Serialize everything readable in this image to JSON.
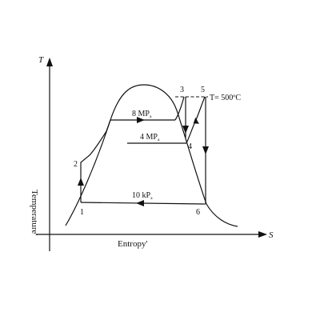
{
  "axes": {
    "y_letter": "T",
    "x_letter": "S",
    "y_name": "Temperature'",
    "x_name": "Entropy'"
  },
  "states": {
    "s1": "1",
    "s2": "2",
    "s3": "3",
    "s4": "4",
    "s5": "5",
    "s6": "6"
  },
  "pressures": {
    "high": {
      "value": "8 MP",
      "sub": "a"
    },
    "mid": {
      "value": "4 MP",
      "sub": "a"
    },
    "low": {
      "value": "10 kP",
      "sub": "a"
    }
  },
  "temperature_label": "T= 500ºC"
}
